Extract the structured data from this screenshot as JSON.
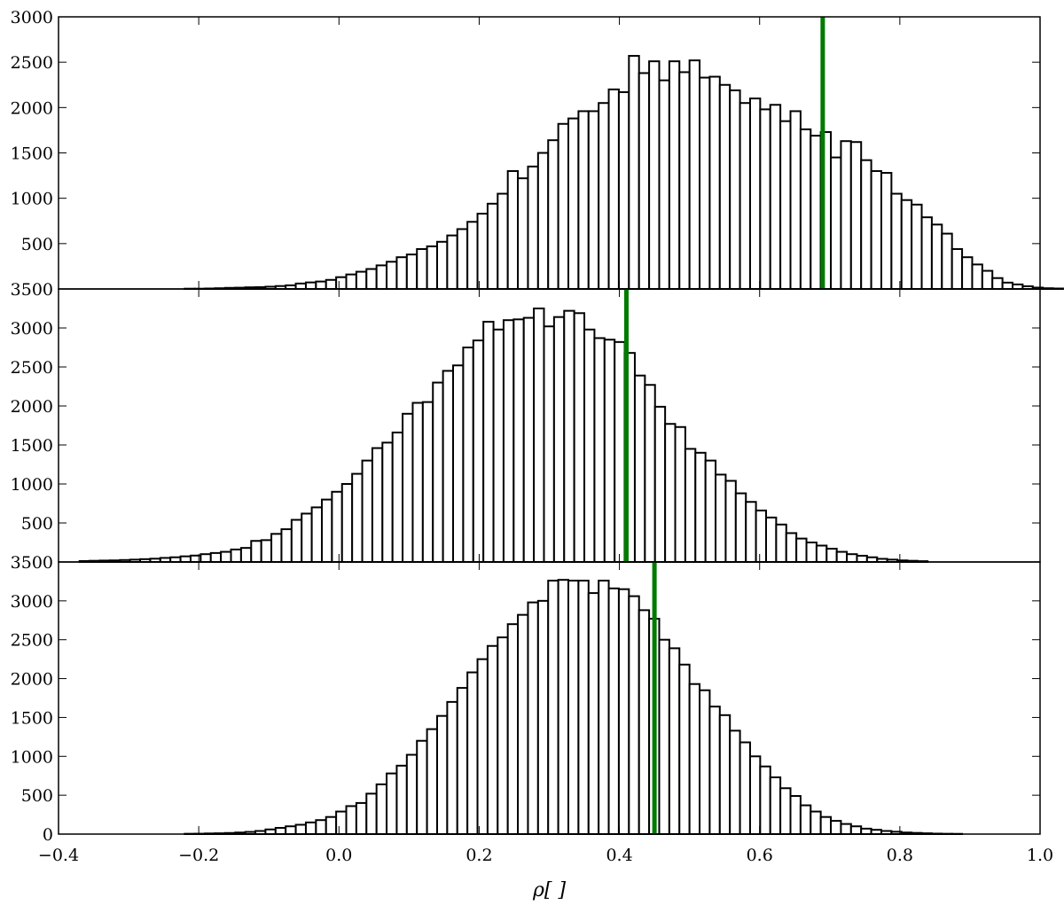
{
  "chart_data": {
    "type": "bar",
    "xlabel": "ρ[ ]",
    "xlim": [
      -0.4,
      1.0
    ],
    "xticks": [
      "−0.4",
      "−0.2",
      "0.0",
      "0.2",
      "0.4",
      "0.6",
      "0.8",
      "1.0"
    ],
    "panels": [
      {
        "ylim": [
          0,
          3000
        ],
        "yticks": [
          "500",
          "1000",
          "1500",
          "2000",
          "2500",
          "3000"
        ],
        "bin_start": -0.22,
        "bin_width": 0.0144,
        "values": [
          3,
          3,
          5,
          8,
          12,
          14,
          18,
          20,
          25,
          32,
          40,
          60,
          72,
          82,
          100,
          130,
          160,
          190,
          220,
          260,
          300,
          350,
          380,
          440,
          470,
          520,
          590,
          660,
          740,
          830,
          940,
          1050,
          1300,
          1220,
          1350,
          1500,
          1640,
          1820,
          1880,
          1960,
          1960,
          2050,
          2200,
          2170,
          2570,
          2380,
          2510,
          2300,
          2510,
          2390,
          2520,
          2330,
          2340,
          2250,
          2190,
          2050,
          2100,
          1980,
          2030,
          1850,
          1960,
          1760,
          1690,
          1730,
          1450,
          1630,
          1620,
          1420,
          1300,
          1280,
          1050,
          980,
          930,
          790,
          710,
          610,
          440,
          350,
          270,
          200,
          120,
          70,
          50,
          30,
          15,
          8,
          5
        ],
        "marker": 0.69
      },
      {
        "ylim": [
          0,
          3500
        ],
        "yticks": [
          "500",
          "1000",
          "1500",
          "2000",
          "2500",
          "3000",
          "3500"
        ],
        "bin_start": -0.37,
        "bin_width": 0.0144,
        "values": [
          12,
          15,
          18,
          20,
          25,
          30,
          36,
          42,
          52,
          60,
          72,
          82,
          100,
          115,
          130,
          160,
          180,
          270,
          280,
          360,
          420,
          540,
          620,
          700,
          800,
          900,
          1000,
          1130,
          1300,
          1460,
          1530,
          1660,
          1900,
          2040,
          2050,
          2300,
          2450,
          2520,
          2750,
          2840,
          3080,
          2980,
          3100,
          3110,
          3130,
          3250,
          3020,
          3140,
          3220,
          3190,
          2980,
          2870,
          2850,
          2820,
          2680,
          2390,
          2270,
          1990,
          1770,
          1730,
          1450,
          1400,
          1300,
          1120,
          1040,
          880,
          770,
          660,
          570,
          480,
          370,
          300,
          250,
          210,
          170,
          130,
          100,
          80,
          60,
          40,
          30,
          20,
          15,
          10
        ],
        "marker": 0.41
      },
      {
        "ylim": [
          0,
          3500
        ],
        "yticks": [
          "0",
          "500",
          "1000",
          "1500",
          "2000",
          "2500",
          "3000",
          "3500"
        ],
        "bin_start": -0.22,
        "bin_width": 0.0144,
        "values": [
          4,
          5,
          8,
          10,
          14,
          20,
          28,
          40,
          60,
          80,
          100,
          120,
          150,
          180,
          220,
          290,
          360,
          400,
          520,
          640,
          780,
          880,
          1020,
          1200,
          1350,
          1520,
          1700,
          1880,
          2080,
          2250,
          2420,
          2530,
          2700,
          2820,
          2980,
          3000,
          3260,
          3270,
          3260,
          3260,
          3100,
          3260,
          3160,
          3150,
          3060,
          2880,
          2770,
          2500,
          2390,
          2180,
          1930,
          1850,
          1640,
          1530,
          1330,
          1180,
          1000,
          870,
          730,
          590,
          490,
          370,
          290,
          220,
          170,
          130,
          100,
          70,
          55,
          40,
          30,
          20,
          15,
          10,
          6,
          4,
          3
        ],
        "marker": 0.45
      }
    ],
    "colors": {
      "bar_fill": "#ffffff",
      "bar_edge": "#000000",
      "marker_line": "#007a00"
    }
  }
}
